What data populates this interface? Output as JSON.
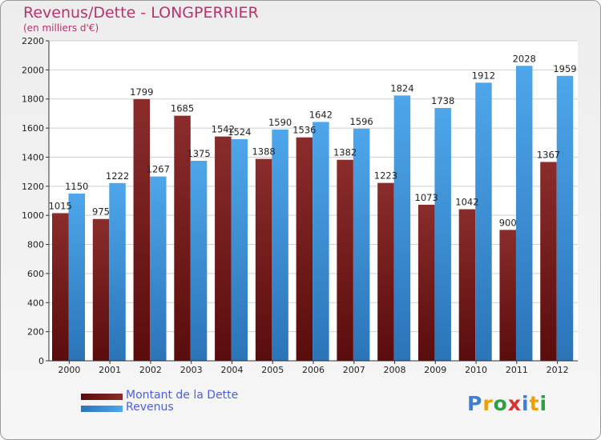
{
  "header": {
    "title": "Revenus/Dette - LONGPERRIER",
    "subtitle": "(en milliers d'€)"
  },
  "logo": {
    "text": "Proxiti",
    "letters": [
      "P",
      "r",
      "o",
      "x",
      "i",
      "t",
      "i"
    ],
    "colors": [
      "#3b7fd9",
      "#e8a100",
      "#2ea043",
      "#d9312e",
      "#3b7fd9",
      "#e8a100",
      "#2ea043"
    ]
  },
  "colors": {
    "dette": "#7a1a1a",
    "revenus": "#3a8fd8",
    "title": "#b8336a",
    "legend_text": "#4a5fe6"
  },
  "chart_data": {
    "type": "bar",
    "title": "Revenus/Dette - LONGPERRIER",
    "subtitle": "(en milliers d'€)",
    "categories": [
      "2000",
      "2001",
      "2002",
      "2003",
      "2004",
      "2005",
      "2006",
      "2007",
      "2008",
      "2009",
      "2010",
      "2011",
      "2012"
    ],
    "series": [
      {
        "name": "Montant de la Dette",
        "color": "#7a1a1a",
        "values": [
          1015,
          975,
          1799,
          1685,
          1542,
          1388,
          1536,
          1382,
          1223,
          1073,
          1042,
          900,
          1367
        ],
        "labels": [
          "1015",
          "975",
          "1799",
          "1685",
          "1542",
          "1388",
          "1536",
          "1382",
          "1223",
          "1073",
          "1042",
          "900",
          "1367"
        ]
      },
      {
        "name": "Revenus",
        "color": "#3a8fd8",
        "values": [
          1150,
          1222,
          1267,
          1375,
          1524,
          1590,
          1642,
          1596,
          1824,
          1738,
          1912,
          2028,
          1959
        ],
        "labels": [
          "1150",
          "1222",
          "1267",
          "1375",
          "1524",
          "1590",
          "1642",
          "1596",
          "1824",
          "1738",
          "1912",
          "2028",
          "1959"
        ]
      }
    ],
    "yticks": [
      "0",
      "200",
      "400",
      "600",
      "800",
      "1000",
      "1200",
      "1400",
      "1600",
      "1800",
      "2000",
      "2200"
    ],
    "ylim": [
      0,
      2200
    ],
    "grid": true,
    "legend": "bottom-left"
  }
}
